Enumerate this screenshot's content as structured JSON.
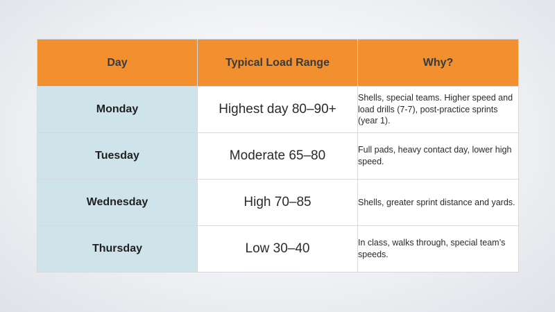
{
  "table": {
    "headers": [
      "Day",
      "Typical Load Range",
      "Why?"
    ],
    "rows": [
      {
        "day": "Monday",
        "range": "Highest day 80–90+",
        "why": "Shells, special teams. Higher speed and load drills (7-7), post-practice sprints (year 1)."
      },
      {
        "day": "Tuesday",
        "range": "Moderate 65–80",
        "why": "Full pads, heavy contact day, lower high speed."
      },
      {
        "day": "Wednesday",
        "range": "High 70–85",
        "why": "Shells, greater sprint distance and yards."
      },
      {
        "day": "Thursday",
        "range": "Low 30–40",
        "why": "In class, walks through, special team’s speeds."
      }
    ],
    "colors": {
      "header_bg": "#f2902f",
      "day_bg": "#cfe4ea",
      "cell_bg": "#ffffff"
    }
  }
}
